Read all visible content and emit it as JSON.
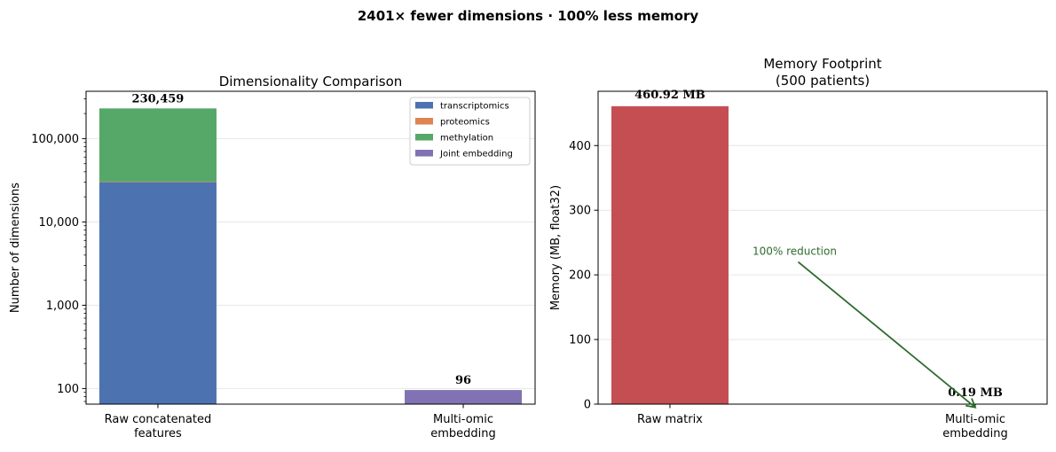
{
  "suptitle": "2401× fewer dimensions  ·  100% less memory",
  "chart_data": [
    {
      "type": "bar",
      "stacked": true,
      "title": "Dimensionality Comparison",
      "ylabel": "Number of dimensions",
      "yscale": "log",
      "ylim": [
        65,
        370000
      ],
      "yticks": [
        {
          "value": 100,
          "label": "100"
        },
        {
          "value": 1000,
          "label": "1,000"
        },
        {
          "value": 10000,
          "label": "10,000"
        },
        {
          "value": 100000,
          "label": "100,000"
        }
      ],
      "categories": [
        "Raw concatenated\nfeatures",
        "Multi-omic\nembedding"
      ],
      "series": [
        {
          "name": "transcriptomics",
          "color": "#4c72b0",
          "values": [
            30000,
            0
          ]
        },
        {
          "name": "proteomics",
          "color": "#dd8452",
          "values": [
            459,
            0
          ]
        },
        {
          "name": "methylation",
          "color": "#55a868",
          "values": [
            200000,
            0
          ]
        },
        {
          "name": "Joint embedding",
          "color": "#8172b3",
          "values": [
            0,
            96
          ]
        }
      ],
      "data_labels": [
        "230,459",
        "96"
      ],
      "legend": "top-right",
      "grid": "y"
    },
    {
      "type": "bar",
      "title": "Memory Footprint\n(500 patients)",
      "ylabel": "Memory (MB, float32)",
      "ylim": [
        0,
        484
      ],
      "yticks": [
        0,
        100,
        200,
        300,
        400
      ],
      "categories": [
        "Raw matrix",
        "Multi-omic\nembedding"
      ],
      "values": [
        460.92,
        0.19
      ],
      "colors": [
        "#c44e52",
        "#8172b3"
      ],
      "data_labels": [
        "460.92 MB",
        "0.19 MB"
      ],
      "annotation": {
        "text": "100% reduction",
        "color": "#2e6b2e",
        "from": [
          0.42,
          220
        ],
        "to": [
          1.0,
          -5
        ]
      },
      "grid": "y"
    }
  ]
}
